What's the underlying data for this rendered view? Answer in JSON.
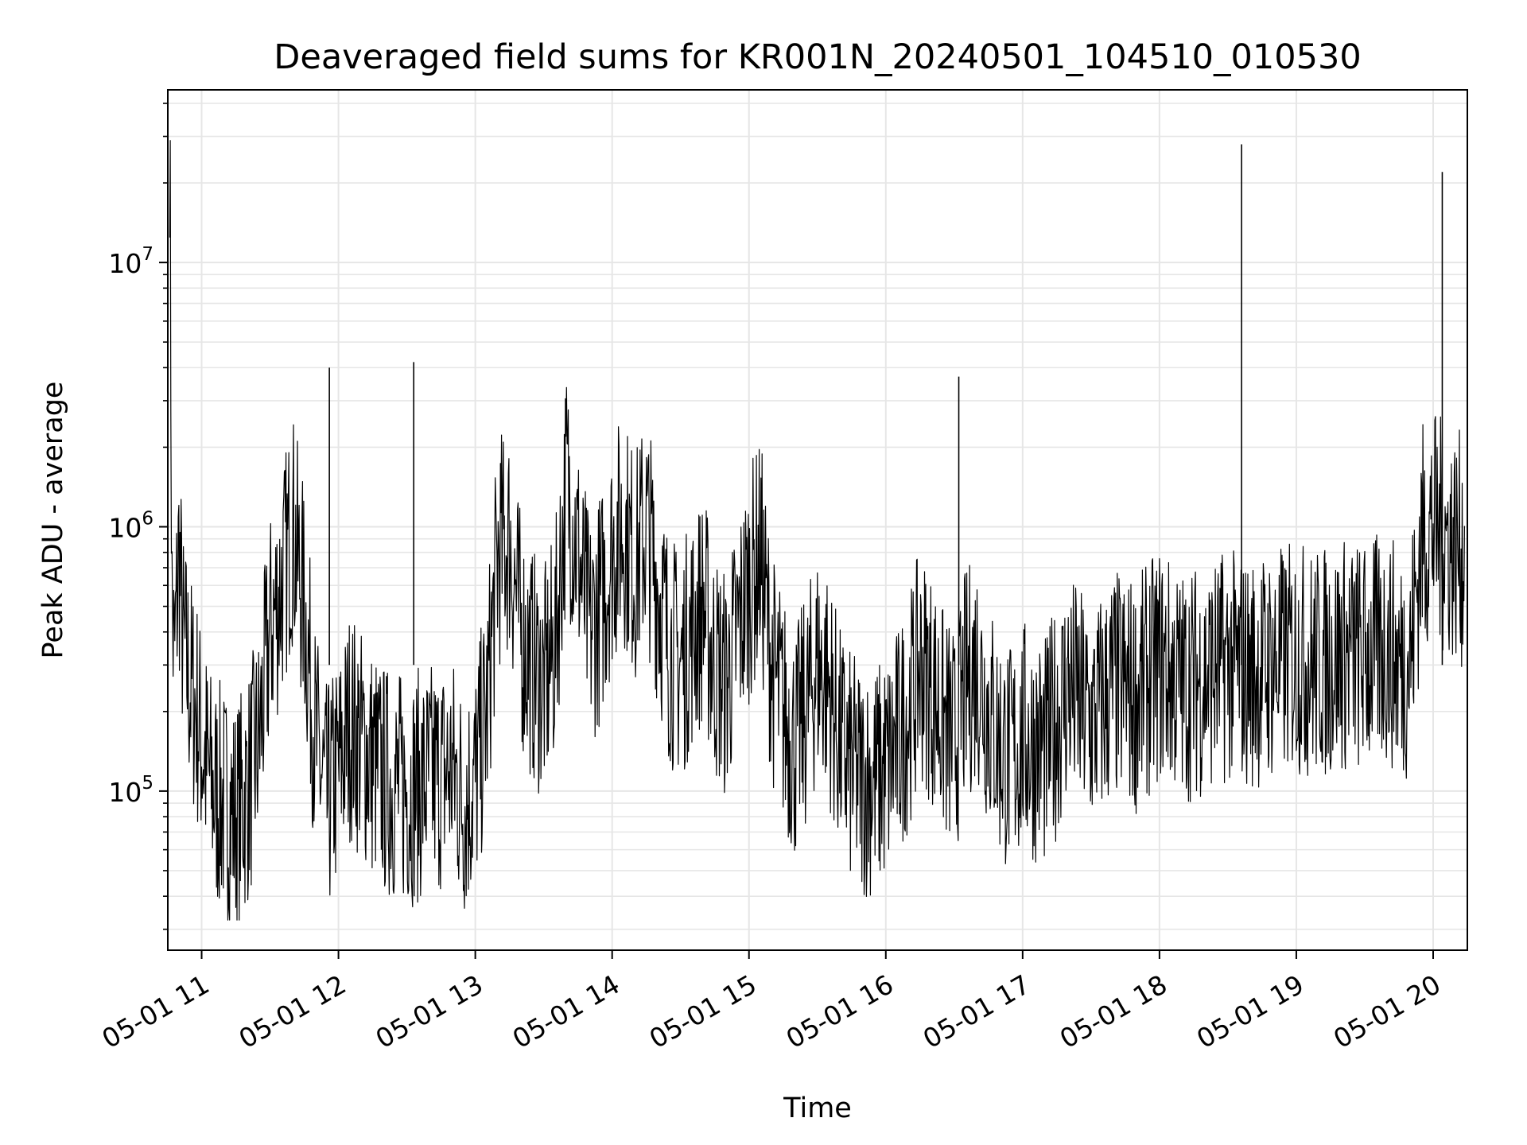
{
  "chart_data": {
    "type": "line",
    "title": "Deaveraged field sums for KR001N_20240501_104510_010530",
    "xlabel": "Time",
    "ylabel": "Peak ADU - average",
    "y_scale": "log",
    "grid": true,
    "legend": "none",
    "line_color": "#000000",
    "grid_color": "#e6e6e6",
    "xlim": [
      "2024-05-01 10:45:10",
      "2024-05-01 20:15:00"
    ],
    "ylim": [
      25000,
      45000000
    ],
    "x_ticks": [
      {
        "value": "2024-05-01 11:00",
        "label": "05-01 11"
      },
      {
        "value": "2024-05-01 12:00",
        "label": "05-01 12"
      },
      {
        "value": "2024-05-01 13:00",
        "label": "05-01 13"
      },
      {
        "value": "2024-05-01 14:00",
        "label": "05-01 14"
      },
      {
        "value": "2024-05-01 15:00",
        "label": "05-01 15"
      },
      {
        "value": "2024-05-01 16:00",
        "label": "05-01 16"
      },
      {
        "value": "2024-05-01 17:00",
        "label": "05-01 17"
      },
      {
        "value": "2024-05-01 18:00",
        "label": "05-01 18"
      },
      {
        "value": "2024-05-01 19:00",
        "label": "05-01 19"
      },
      {
        "value": "2024-05-01 20:00",
        "label": "05-01 20"
      }
    ],
    "y_ticks": [
      {
        "value": 100000,
        "base": "10",
        "exp": "5"
      },
      {
        "value": 1000000,
        "base": "10",
        "exp": "6"
      },
      {
        "value": 10000000,
        "base": "10",
        "exp": "7"
      }
    ],
    "series": [
      {
        "x": [
          "2024-05-01 10:46",
          "2024-05-01 10:47",
          "2024-05-01 10:48",
          "2024-05-01 10:50",
          "2024-05-01 10:52",
          "2024-05-01 10:55",
          "2024-05-01 10:58",
          "2024-05-01 11:00",
          "2024-05-01 11:05",
          "2024-05-01 11:10",
          "2024-05-01 11:15",
          "2024-05-01 11:20",
          "2024-05-01 11:25",
          "2024-05-01 11:30",
          "2024-05-01 11:35",
          "2024-05-01 11:40",
          "2024-05-01 11:45",
          "2024-05-01 11:50",
          "2024-05-01 11:55",
          "2024-05-01 12:00",
          "2024-05-01 12:05",
          "2024-05-01 12:10",
          "2024-05-01 12:20",
          "2024-05-01 12:30",
          "2024-05-01 12:40",
          "2024-05-01 12:50",
          "2024-05-01 12:55",
          "2024-05-01 13:00",
          "2024-05-01 13:05",
          "2024-05-01 13:10",
          "2024-05-01 13:15",
          "2024-05-01 13:20",
          "2024-05-01 13:25",
          "2024-05-01 13:30",
          "2024-05-01 13:35",
          "2024-05-01 13:40",
          "2024-05-01 13:45",
          "2024-05-01 13:50",
          "2024-05-01 13:55",
          "2024-05-01 14:00",
          "2024-05-01 14:05",
          "2024-05-01 14:10",
          "2024-05-01 14:15",
          "2024-05-01 14:20",
          "2024-05-01 14:25",
          "2024-05-01 14:30",
          "2024-05-01 14:35",
          "2024-05-01 14:40",
          "2024-05-01 14:45",
          "2024-05-01 14:50",
          "2024-05-01 14:55",
          "2024-05-01 15:00",
          "2024-05-01 15:05",
          "2024-05-01 15:10",
          "2024-05-01 15:15",
          "2024-05-01 15:20",
          "2024-05-01 15:25",
          "2024-05-01 15:30",
          "2024-05-01 15:35",
          "2024-05-01 15:40",
          "2024-05-01 15:45",
          "2024-05-01 15:50",
          "2024-05-01 15:55",
          "2024-05-01 16:00",
          "2024-05-01 16:05",
          "2024-05-01 16:10",
          "2024-05-01 16:15",
          "2024-05-01 16:20",
          "2024-05-01 16:25",
          "2024-05-01 16:30",
          "2024-05-01 16:35",
          "2024-05-01 16:40",
          "2024-05-01 16:45",
          "2024-05-01 16:50",
          "2024-05-01 16:55",
          "2024-05-01 17:00",
          "2024-05-01 17:10",
          "2024-05-01 17:20",
          "2024-05-01 17:30",
          "2024-05-01 17:40",
          "2024-05-01 17:50",
          "2024-05-01 18:00",
          "2024-05-01 18:10",
          "2024-05-01 18:20",
          "2024-05-01 18:30",
          "2024-05-01 18:40",
          "2024-05-01 18:50",
          "2024-05-01 19:00",
          "2024-05-01 19:10",
          "2024-05-01 19:20",
          "2024-05-01 19:30",
          "2024-05-01 19:40",
          "2024-05-01 19:45",
          "2024-05-01 19:50",
          "2024-05-01 19:55",
          "2024-05-01 20:00",
          "2024-05-01 20:05",
          "2024-05-01 20:10",
          "2024-05-01 20:14"
        ],
        "y": [
          35000000,
          500000,
          300000,
          800000,
          350000,
          250000,
          200000,
          150000,
          100000,
          90000,
          80000,
          100000,
          150000,
          400000,
          600000,
          1000000,
          500000,
          150000,
          90000,
          120000,
          180000,
          150000,
          110000,
          100000,
          110000,
          120000,
          90000,
          110000,
          200000,
          800000,
          900000,
          400000,
          300000,
          250000,
          350000,
          1500000,
          800000,
          400000,
          500000,
          800000,
          1000000,
          700000,
          1000000,
          600000,
          350000,
          300000,
          400000,
          500000,
          300000,
          250000,
          400000,
          600000,
          800000,
          300000,
          200000,
          150000,
          200000,
          300000,
          250000,
          150000,
          120000,
          110000,
          110000,
          120000,
          150000,
          200000,
          300000,
          250000,
          180000,
          150000,
          250000,
          300000,
          200000,
          150000,
          130000,
          160000,
          140000,
          250000,
          180000,
          250000,
          230000,
          300000,
          250000,
          270000,
          300000,
          280000,
          300000,
          320000,
          300000,
          330000,
          320000,
          350000,
          300000,
          320000,
          900000,
          1000000,
          900000,
          850000,
          800000
        ]
      }
    ],
    "spikes": [
      {
        "x": "2024-05-01 18:36",
        "y": 28000000
      },
      {
        "x": "2024-05-01 20:04",
        "y": 22000000
      },
      {
        "x": "2024-05-01 12:33",
        "y": 4200000
      },
      {
        "x": "2024-05-01 11:56",
        "y": 4000000
      },
      {
        "x": "2024-05-01 16:32",
        "y": 3700000
      }
    ]
  }
}
